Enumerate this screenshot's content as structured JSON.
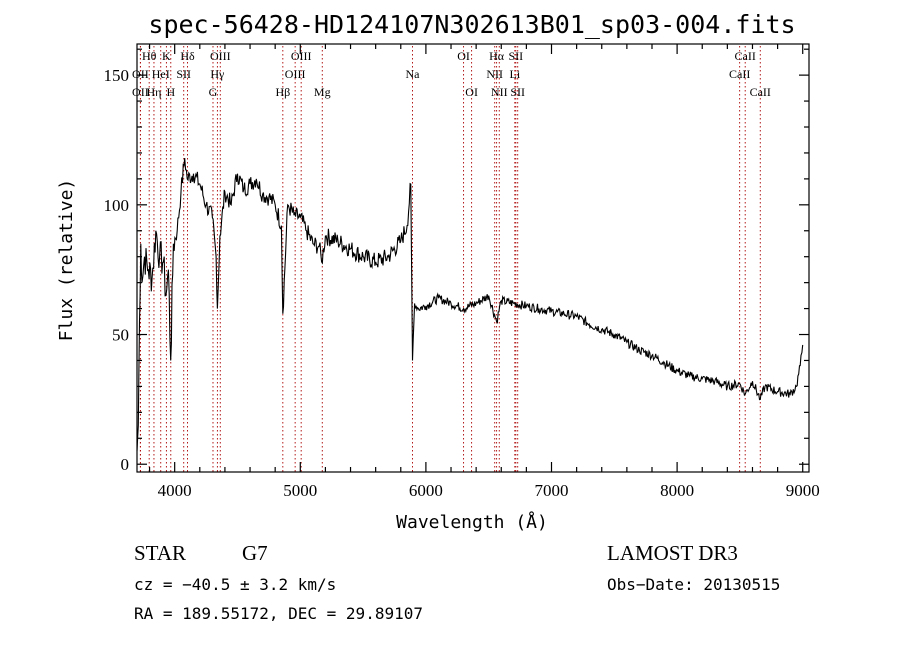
{
  "chart_data": {
    "type": "line",
    "title": "spec-56428-HD124107N302613B01_sp03-004.fits",
    "xlabel": "Wavelength (Å)",
    "ylabel": "Flux (relative)",
    "xlim": [
      3700,
      9050
    ],
    "ylim": [
      -3,
      162
    ],
    "xticks": [
      4000,
      5000,
      6000,
      7000,
      8000,
      9000
    ],
    "yticks": [
      0,
      50,
      100,
      150
    ],
    "xtick_labels": [
      "4000",
      "5000",
      "6000",
      "7000",
      "8000",
      "9000"
    ],
    "ytick_labels": [
      "0",
      "50",
      "100",
      "150"
    ],
    "series": [
      {
        "name": "spectrum",
        "x": [
          3700,
          3710,
          3720,
          3730,
          3740,
          3760,
          3790,
          3820,
          3850,
          3880,
          3910,
          3930,
          3950,
          3968,
          3990,
          4020,
          4050,
          4080,
          4100,
          4150,
          4200,
          4250,
          4300,
          4330,
          4340,
          4360,
          4400,
          4450,
          4500,
          4550,
          4600,
          4650,
          4700,
          4750,
          4800,
          4850,
          4861,
          4900,
          4950,
          5000,
          5050,
          5100,
          5150,
          5170,
          5200,
          5300,
          5400,
          5500,
          5600,
          5700,
          5800,
          5850,
          5880,
          5893,
          5910,
          5940,
          6000,
          6100,
          6200,
          6300,
          6400,
          6500,
          6563,
          6600,
          6700,
          6800,
          6900,
          7000,
          7100,
          7200,
          7300,
          7400,
          7500,
          7600,
          7700,
          7800,
          7900,
          8000,
          8100,
          8200,
          8300,
          8400,
          8500,
          8542,
          8600,
          8662,
          8700,
          8800,
          8900,
          8950,
          8980,
          9000
        ],
        "values": [
          5,
          15,
          55,
          85,
          70,
          80,
          75,
          72,
          90,
          80,
          78,
          65,
          75,
          40,
          85,
          90,
          105,
          118,
          110,
          112,
          108,
          100,
          95,
          80,
          60,
          88,
          105,
          100,
          112,
          106,
          108,
          110,
          104,
          103,
          100,
          92,
          58,
          100,
          96,
          95,
          90,
          85,
          84,
          78,
          88,
          86,
          83,
          80,
          78,
          80,
          86,
          92,
          108,
          40,
          62,
          60,
          61,
          64,
          62,
          60,
          62,
          65,
          55,
          63,
          62,
          61,
          60,
          59,
          58,
          57,
          54,
          52,
          50,
          47,
          44,
          42,
          39,
          36,
          34,
          33,
          32,
          30,
          31,
          27,
          32,
          25,
          30,
          28,
          27,
          30,
          38,
          46
        ]
      }
    ],
    "spectral_lines": [
      {
        "label": "Hθ",
        "x": 3797,
        "row": 1
      },
      {
        "label": "K",
        "x": 3934,
        "row": 1
      },
      {
        "label": "Hδ",
        "x": 4102,
        "row": 1
      },
      {
        "label": "OII",
        "x": 3727,
        "row": 2
      },
      {
        "label": "HeI",
        "x": 3889,
        "row": 2
      },
      {
        "label": "SII",
        "x": 4072,
        "row": 2
      },
      {
        "label": "OIII",
        "x": 4363,
        "row": 1
      },
      {
        "label": "Hγ",
        "x": 4340,
        "row": 2
      },
      {
        "label": "G",
        "x": 4305,
        "row": 3
      },
      {
        "label": "OII",
        "x": 3727,
        "row": 3
      },
      {
        "label": "Hη",
        "x": 3835,
        "row": 3
      },
      {
        "label": "H",
        "x": 3969,
        "row": 3
      },
      {
        "label": "OIII",
        "x": 5007,
        "row": 1
      },
      {
        "label": "OIII",
        "x": 4959,
        "row": 2
      },
      {
        "label": "Hβ",
        "x": 4861,
        "row": 3
      },
      {
        "label": "Mg",
        "x": 5175,
        "row": 3
      },
      {
        "label": "Na",
        "x": 5893,
        "row": 2
      },
      {
        "label": "OI",
        "x": 6300,
        "row": 1
      },
      {
        "label": "OI",
        "x": 6364,
        "row": 3
      },
      {
        "label": "Hα",
        "x": 6563,
        "row": 1
      },
      {
        "label": "SII",
        "x": 6716,
        "row": 1
      },
      {
        "label": "NII",
        "x": 6548,
        "row": 2
      },
      {
        "label": "Li",
        "x": 6708,
        "row": 2
      },
      {
        "label": "NII",
        "x": 6584,
        "row": 3
      },
      {
        "label": "SII",
        "x": 6731,
        "row": 3
      },
      {
        "label": "CaII",
        "x": 8542,
        "row": 1
      },
      {
        "label": "CaII",
        "x": 8498,
        "row": 2
      },
      {
        "label": "CaII",
        "x": 8662,
        "row": 3
      }
    ]
  },
  "info": {
    "object_class": "STAR",
    "subclass": "G7",
    "survey": "LAMOST DR3",
    "redshift": "cz = −40.5 ± 3.2 km/s",
    "obs_date": "Obs−Date: 20130515",
    "coords": "RA = 189.55172, DEC =  29.89107"
  }
}
